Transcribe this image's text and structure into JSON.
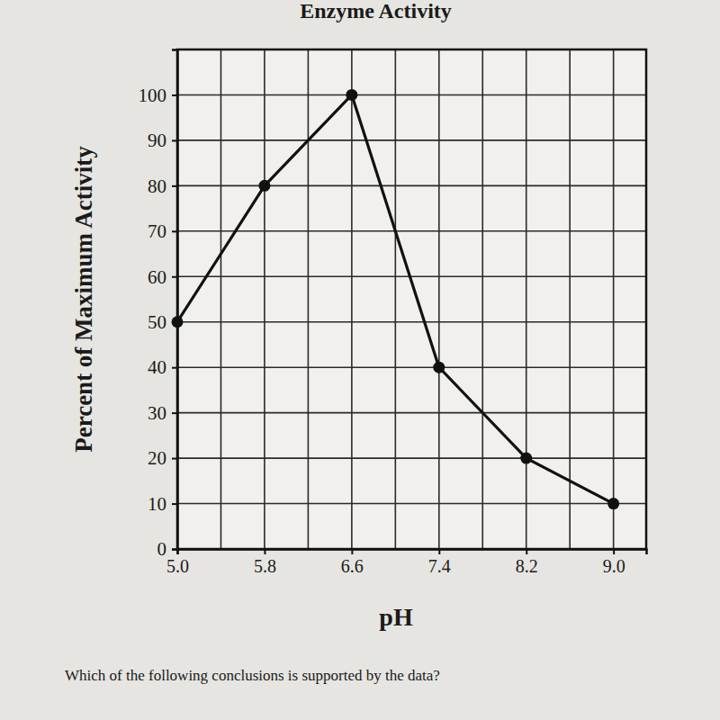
{
  "chart_data": {
    "type": "line",
    "title": "Enzyme Activity",
    "x_label": "pH",
    "y_label": "Percent of Maximum Activity",
    "annotation": "Which of the following conclusions is supported by the data?",
    "x": [
      5.0,
      5.8,
      6.6,
      7.4,
      8.2,
      9.0
    ],
    "values": [
      50,
      80,
      100,
      40,
      20,
      10
    ],
    "color": "#111111",
    "marker": "circle",
    "grid": true,
    "xlim": [
      5.0,
      9.3
    ],
    "xticks": [
      {
        "value": 5.0,
        "label": "5.0"
      },
      {
        "value": 5.8,
        "label": "5.8"
      },
      {
        "value": 6.6,
        "label": "6.6"
      },
      {
        "value": 7.4,
        "label": "7.4"
      },
      {
        "value": 8.2,
        "label": "8.2"
      },
      {
        "value": 9.0,
        "label": "9.0"
      }
    ],
    "ylim": [
      0,
      110
    ],
    "yticks": [
      0,
      10,
      20,
      30,
      40,
      50,
      60,
      70,
      80,
      90,
      100
    ]
  }
}
